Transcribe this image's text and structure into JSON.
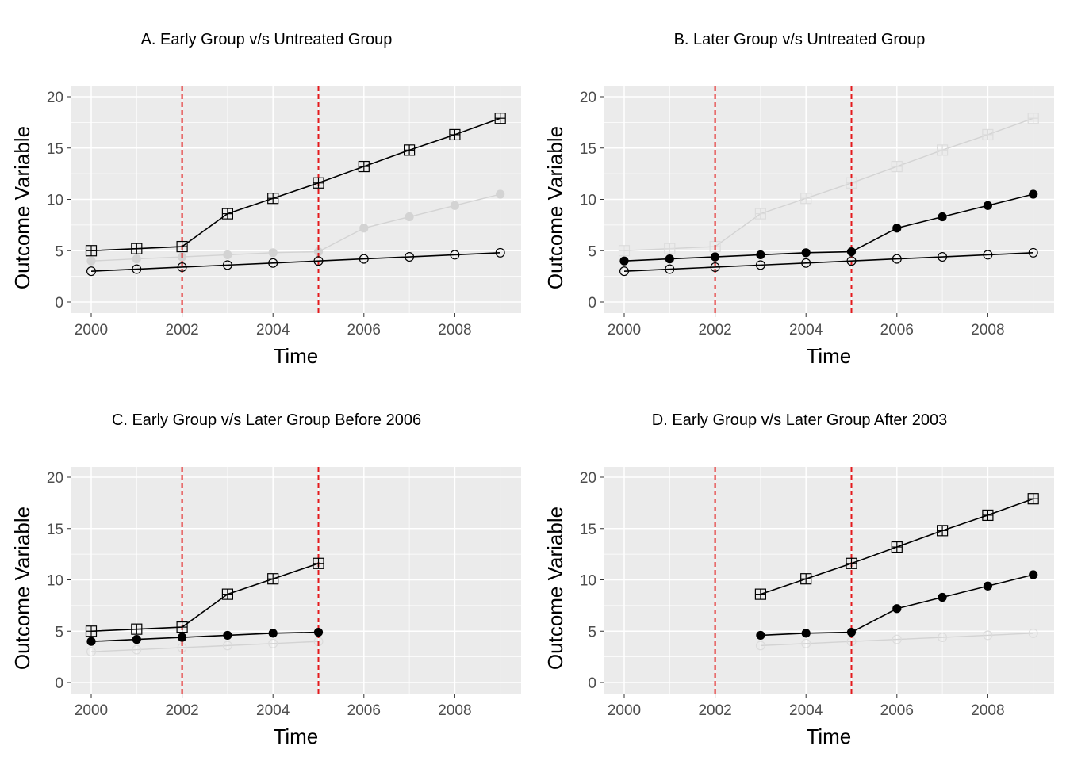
{
  "chart_data": [
    {
      "type": "line",
      "title": "A. Early Group v/s Untreated Group",
      "xlabel": "Time",
      "ylabel": "Outcome Variable",
      "xlim": [
        2000,
        2009
      ],
      "ylim": [
        0,
        20
      ],
      "xticks": [
        2000,
        2002,
        2004,
        2006,
        2008
      ],
      "yticks": [
        0,
        5,
        10,
        15,
        20
      ],
      "vlines": [
        2002,
        2005
      ],
      "vline_color": "#e41a1c",
      "series": [
        {
          "style": "square",
          "emphasis": "active",
          "x": [
            2000,
            2001,
            2002,
            2003,
            2004,
            2005,
            2006,
            2007,
            2008,
            2009
          ],
          "y": [
            5.0,
            5.2,
            5.4,
            8.6,
            10.1,
            11.6,
            13.2,
            14.8,
            16.3,
            17.9
          ]
        },
        {
          "style": "filled",
          "emphasis": "faded",
          "x": [
            2000,
            2001,
            2002,
            2003,
            2004,
            2005,
            2006,
            2007,
            2008,
            2009
          ],
          "y": [
            4.0,
            4.2,
            4.4,
            4.6,
            4.8,
            4.9,
            7.2,
            8.3,
            9.4,
            10.5
          ]
        },
        {
          "style": "open",
          "emphasis": "active",
          "x": [
            2000,
            2001,
            2002,
            2003,
            2004,
            2005,
            2006,
            2007,
            2008,
            2009
          ],
          "y": [
            3.0,
            3.2,
            3.4,
            3.6,
            3.8,
            4.0,
            4.2,
            4.4,
            4.6,
            4.8
          ]
        }
      ]
    },
    {
      "type": "line",
      "title": "B. Later Group v/s Untreated Group",
      "xlabel": "Time",
      "ylabel": "Outcome Variable",
      "xlim": [
        2000,
        2009
      ],
      "ylim": [
        0,
        20
      ],
      "xticks": [
        2000,
        2002,
        2004,
        2006,
        2008
      ],
      "yticks": [
        0,
        5,
        10,
        15,
        20
      ],
      "vlines": [
        2002,
        2005
      ],
      "vline_color": "#e41a1c",
      "series": [
        {
          "style": "square",
          "emphasis": "faded",
          "x": [
            2000,
            2001,
            2002,
            2003,
            2004,
            2005,
            2006,
            2007,
            2008,
            2009
          ],
          "y": [
            5.0,
            5.2,
            5.4,
            8.6,
            10.1,
            11.6,
            13.2,
            14.8,
            16.3,
            17.9
          ]
        },
        {
          "style": "filled",
          "emphasis": "active",
          "x": [
            2000,
            2001,
            2002,
            2003,
            2004,
            2005,
            2006,
            2007,
            2008,
            2009
          ],
          "y": [
            4.0,
            4.2,
            4.4,
            4.6,
            4.8,
            4.9,
            7.2,
            8.3,
            9.4,
            10.5
          ]
        },
        {
          "style": "open",
          "emphasis": "active",
          "x": [
            2000,
            2001,
            2002,
            2003,
            2004,
            2005,
            2006,
            2007,
            2008,
            2009
          ],
          "y": [
            3.0,
            3.2,
            3.4,
            3.6,
            3.8,
            4.0,
            4.2,
            4.4,
            4.6,
            4.8
          ]
        }
      ]
    },
    {
      "type": "line",
      "title": "C. Early Group v/s Later Group Before 2006",
      "xlabel": "Time",
      "ylabel": "Outcome Variable",
      "xlim": [
        2000,
        2009
      ],
      "ylim": [
        0,
        20
      ],
      "xticks": [
        2000,
        2002,
        2004,
        2006,
        2008
      ],
      "yticks": [
        0,
        5,
        10,
        15,
        20
      ],
      "vlines": [
        2002,
        2005
      ],
      "vline_color": "#e41a1c",
      "series": [
        {
          "style": "square",
          "emphasis": "active",
          "x": [
            2000,
            2001,
            2002,
            2003,
            2004,
            2005
          ],
          "y": [
            5.0,
            5.2,
            5.4,
            8.6,
            10.1,
            11.6
          ]
        },
        {
          "style": "filled",
          "emphasis": "active",
          "x": [
            2000,
            2001,
            2002,
            2003,
            2004,
            2005
          ],
          "y": [
            4.0,
            4.2,
            4.4,
            4.6,
            4.8,
            4.9
          ]
        },
        {
          "style": "open",
          "emphasis": "faded",
          "x": [
            2000,
            2001,
            2002,
            2003,
            2004,
            2005
          ],
          "y": [
            3.0,
            3.2,
            3.4,
            3.6,
            3.8,
            4.0
          ]
        }
      ]
    },
    {
      "type": "line",
      "title": "D. Early Group v/s Later Group After 2003",
      "xlabel": "Time",
      "ylabel": "Outcome Variable",
      "xlim": [
        2000,
        2009
      ],
      "ylim": [
        0,
        20
      ],
      "xticks": [
        2000,
        2002,
        2004,
        2006,
        2008
      ],
      "yticks": [
        0,
        5,
        10,
        15,
        20
      ],
      "vlines": [
        2002,
        2005
      ],
      "vline_color": "#e41a1c",
      "series": [
        {
          "style": "square",
          "emphasis": "active",
          "x": [
            2003,
            2004,
            2005,
            2006,
            2007,
            2008,
            2009
          ],
          "y": [
            8.6,
            10.1,
            11.6,
            13.2,
            14.8,
            16.3,
            17.9
          ]
        },
        {
          "style": "filled",
          "emphasis": "active",
          "x": [
            2003,
            2004,
            2005,
            2006,
            2007,
            2008,
            2009
          ],
          "y": [
            4.6,
            4.8,
            4.9,
            7.2,
            8.3,
            9.4,
            10.5
          ]
        },
        {
          "style": "open",
          "emphasis": "faded",
          "x": [
            2003,
            2004,
            2005,
            2006,
            2007,
            2008,
            2009
          ],
          "y": [
            3.6,
            3.8,
            4.0,
            4.2,
            4.4,
            4.6,
            4.8
          ]
        }
      ]
    }
  ]
}
